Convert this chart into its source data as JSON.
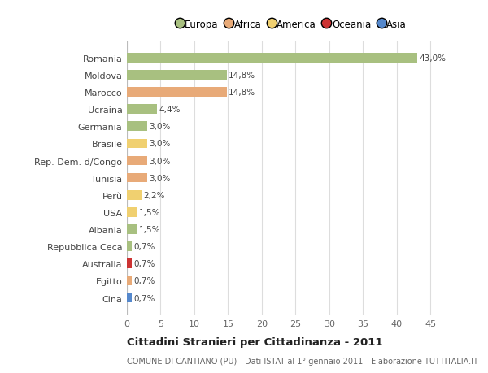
{
  "countries": [
    "Romania",
    "Moldova",
    "Marocco",
    "Ucraina",
    "Germania",
    "Brasile",
    "Rep. Dem. d/Congo",
    "Tunisia",
    "Perù",
    "USA",
    "Albania",
    "Repubblica Ceca",
    "Australia",
    "Egitto",
    "Cina"
  ],
  "values": [
    43.0,
    14.8,
    14.8,
    4.4,
    3.0,
    3.0,
    3.0,
    3.0,
    2.2,
    1.5,
    1.5,
    0.7,
    0.7,
    0.7,
    0.7
  ],
  "labels": [
    "43,0%",
    "14,8%",
    "14,8%",
    "4,4%",
    "3,0%",
    "3,0%",
    "3,0%",
    "3,0%",
    "2,2%",
    "1,5%",
    "1,5%",
    "0,7%",
    "0,7%",
    "0,7%",
    "0,7%"
  ],
  "colors": [
    "#a8c080",
    "#a8c080",
    "#e8aa78",
    "#a8c080",
    "#a8c080",
    "#f0d070",
    "#e8aa78",
    "#e8aa78",
    "#f0d070",
    "#f0d070",
    "#a8c080",
    "#a8c080",
    "#cc3333",
    "#e8aa78",
    "#5588cc"
  ],
  "legend_labels": [
    "Europa",
    "Africa",
    "America",
    "Oceania",
    "Asia"
  ],
  "legend_colors": [
    "#a8c080",
    "#e8aa78",
    "#f0d070",
    "#cc3333",
    "#5588cc"
  ],
  "title": "Cittadini Stranieri per Cittadinanza - 2011",
  "subtitle": "COMUNE DI CANTIANO (PU) - Dati ISTAT al 1° gennaio 2011 - Elaborazione TUTTITALIA.IT",
  "xlim": [
    0,
    47
  ],
  "xticks": [
    0,
    5,
    10,
    15,
    20,
    25,
    30,
    35,
    40,
    45
  ],
  "bg_color": "#ffffff",
  "grid_color": "#dddddd",
  "bar_height": 0.55
}
